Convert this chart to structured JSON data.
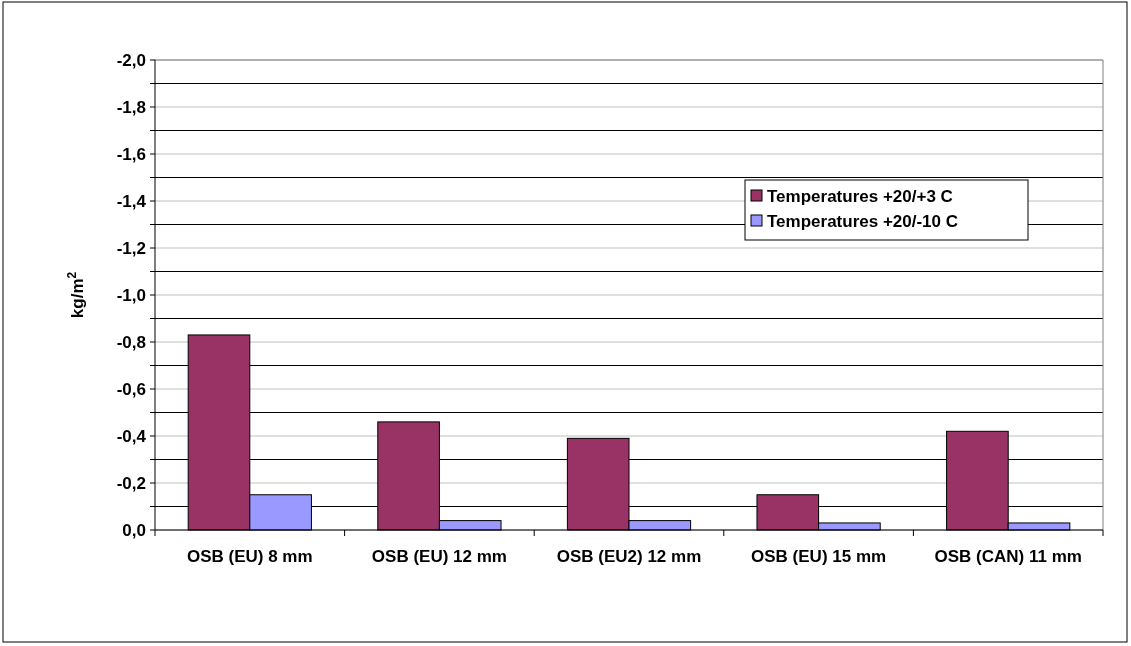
{
  "chart_data": {
    "type": "bar",
    "ylabel": "kg/m$^{2}$",
    "categories": [
      "OSB (EU) 8 mm",
      "OSB (EU) 12 mm",
      "OSB (EU2) 12 mm",
      "OSB (EU) 15 mm",
      "OSB (CAN) 11 mm"
    ],
    "series": [
      {
        "name": "Temperatures +20/+3 C",
        "color": "#993366",
        "values": [
          -0.83,
          -0.46,
          -0.39,
          -0.15,
          -0.42
        ]
      },
      {
        "name": "Temperatures +20/-10 C",
        "color": "#9999ff",
        "values": [
          -0.15,
          -0.04,
          -0.04,
          -0.03,
          -0.03
        ]
      }
    ],
    "ylim": [
      0,
      -2
    ],
    "yticks": [
      {
        "value": 0,
        "label": "0,0"
      },
      {
        "value": -0.1,
        "label": null
      },
      {
        "value": -0.2,
        "label": "-0,2"
      },
      {
        "value": -0.3,
        "label": null
      },
      {
        "value": -0.4,
        "label": "-0,4"
      },
      {
        "value": -0.5,
        "label": null
      },
      {
        "value": -0.6,
        "label": "-0,6"
      },
      {
        "value": -0.7,
        "label": null
      },
      {
        "value": -0.8,
        "label": "-0,8"
      },
      {
        "value": -0.9,
        "label": null
      },
      {
        "value": -1,
        "label": "-1,0"
      },
      {
        "value": -1.1,
        "label": null
      },
      {
        "value": -1.2,
        "label": "-1,2"
      },
      {
        "value": -1.3,
        "label": null
      },
      {
        "value": -1.4,
        "label": "-1,4"
      },
      {
        "value": -1.5,
        "label": null
      },
      {
        "value": -1.6,
        "label": "-1,6"
      },
      {
        "value": -1.7,
        "label": null
      },
      {
        "value": -1.8,
        "label": "-1,8"
      },
      {
        "value": -1.9,
        "label": null
      },
      {
        "value": -2,
        "label": "-2,0"
      }
    ],
    "grid": "y",
    "legend": "top right"
  }
}
